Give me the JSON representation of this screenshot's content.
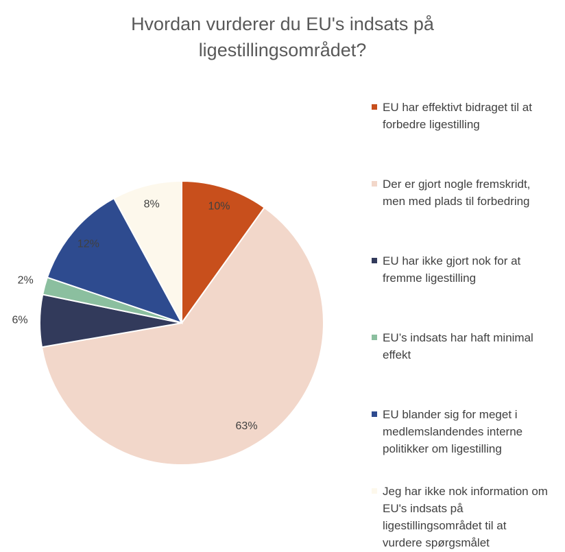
{
  "chart_data": {
    "type": "pie",
    "title": "Hvordan vurderer du EU's indsats på ligestillingsområdet?",
    "categories": [
      "EU har effektivt bidraget til at forbedre ligestilling",
      "Der er gjort nogle fremskridt, men med plads til forbedring",
      "EU har ikke gjort nok for at fremme ligestilling",
      "EU’s indsats har haft minimal effekt",
      "EU blander sig for meget i medlemslandendes interne politikker om ligestilling",
      "Jeg har ikke nok information om EU's indsats på ligestillingsområdet til at vurdere spørgsmålet"
    ],
    "values": [
      10,
      63,
      6,
      2,
      12,
      8
    ],
    "value_labels": [
      "10%",
      "63%",
      "6%",
      "2%",
      "12%",
      "8%"
    ],
    "colors": [
      "#c84f1c",
      "#f2d7ca",
      "#323a5b",
      "#8bbf9f",
      "#2e4b8f",
      "#fdf8ec"
    ],
    "legend": "right"
  }
}
